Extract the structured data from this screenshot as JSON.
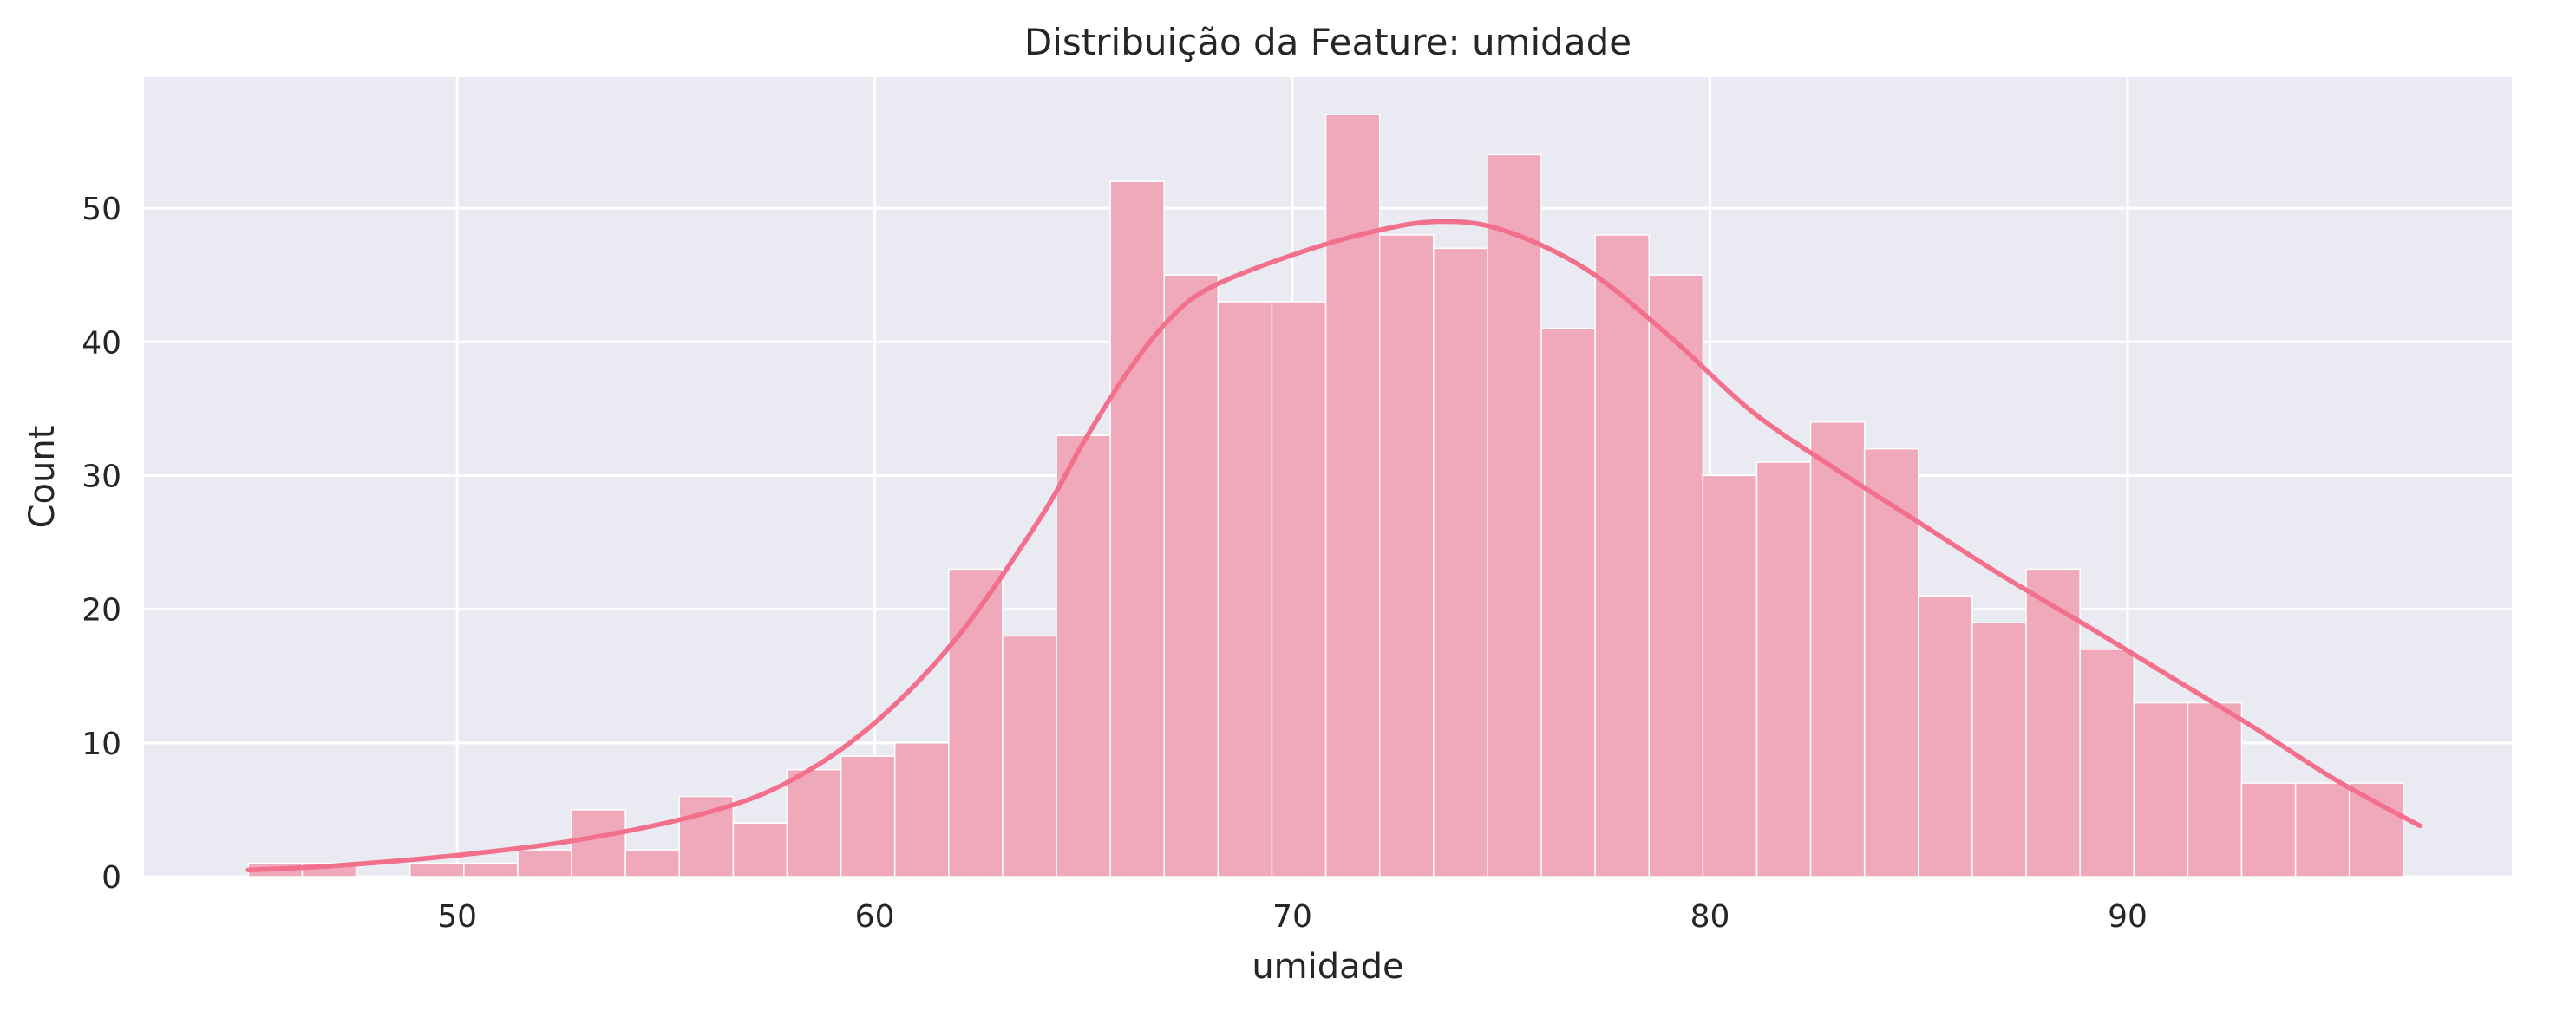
{
  "colors": {
    "plot_background": "#eaeaf2",
    "grid": "#ffffff",
    "bar_fill": "#f0a8bb",
    "bar_edge": "#ffffff",
    "kde_line": "#f2708c",
    "text": "#262626"
  },
  "chart_data": {
    "type": "bar",
    "subtype": "histogram-with-kde",
    "title": "Distribuição da Feature: umidade",
    "xlabel": "umidade",
    "ylabel": "Count",
    "xlim": [
      42.5,
      99.2
    ],
    "ylim": [
      0,
      59.8
    ],
    "grid": true,
    "legend": "none",
    "x_ticks": [
      50,
      60,
      70,
      80,
      90
    ],
    "y_ticks": [
      0,
      10,
      20,
      30,
      40,
      50
    ],
    "x_tick_labels": [
      "50",
      "60",
      "70",
      "80",
      "90"
    ],
    "y_tick_labels": [
      "0",
      "10",
      "20",
      "30",
      "40",
      "50"
    ],
    "bins": {
      "start": 45.0,
      "width": 1.29,
      "counts": [
        1,
        1,
        0,
        1,
        1,
        2,
        5,
        2,
        6,
        4,
        8,
        9,
        10,
        23,
        18,
        33,
        52,
        45,
        43,
        43,
        57,
        48,
        47,
        54,
        41,
        48,
        45,
        30,
        31,
        34,
        32,
        21,
        19,
        23,
        17,
        13,
        13,
        7,
        7,
        7
      ]
    },
    "kde": {
      "x": [
        45,
        47,
        50,
        53,
        56,
        58,
        60,
        62,
        64,
        65,
        66,
        67,
        68,
        70,
        72,
        73.5,
        75,
        77,
        79,
        81,
        83,
        85,
        87,
        89,
        91,
        93,
        95,
        97
      ],
      "y": [
        0.5,
        0.8,
        1.6,
        2.8,
        4.8,
        7.2,
        11.5,
        18.0,
        27.0,
        32.5,
        37.5,
        41.5,
        44.0,
        46.5,
        48.3,
        49.0,
        48.4,
        45.5,
        40.5,
        34.8,
        30.5,
        26.5,
        22.5,
        18.8,
        15.0,
        11.2,
        7.2,
        3.8
      ]
    }
  }
}
